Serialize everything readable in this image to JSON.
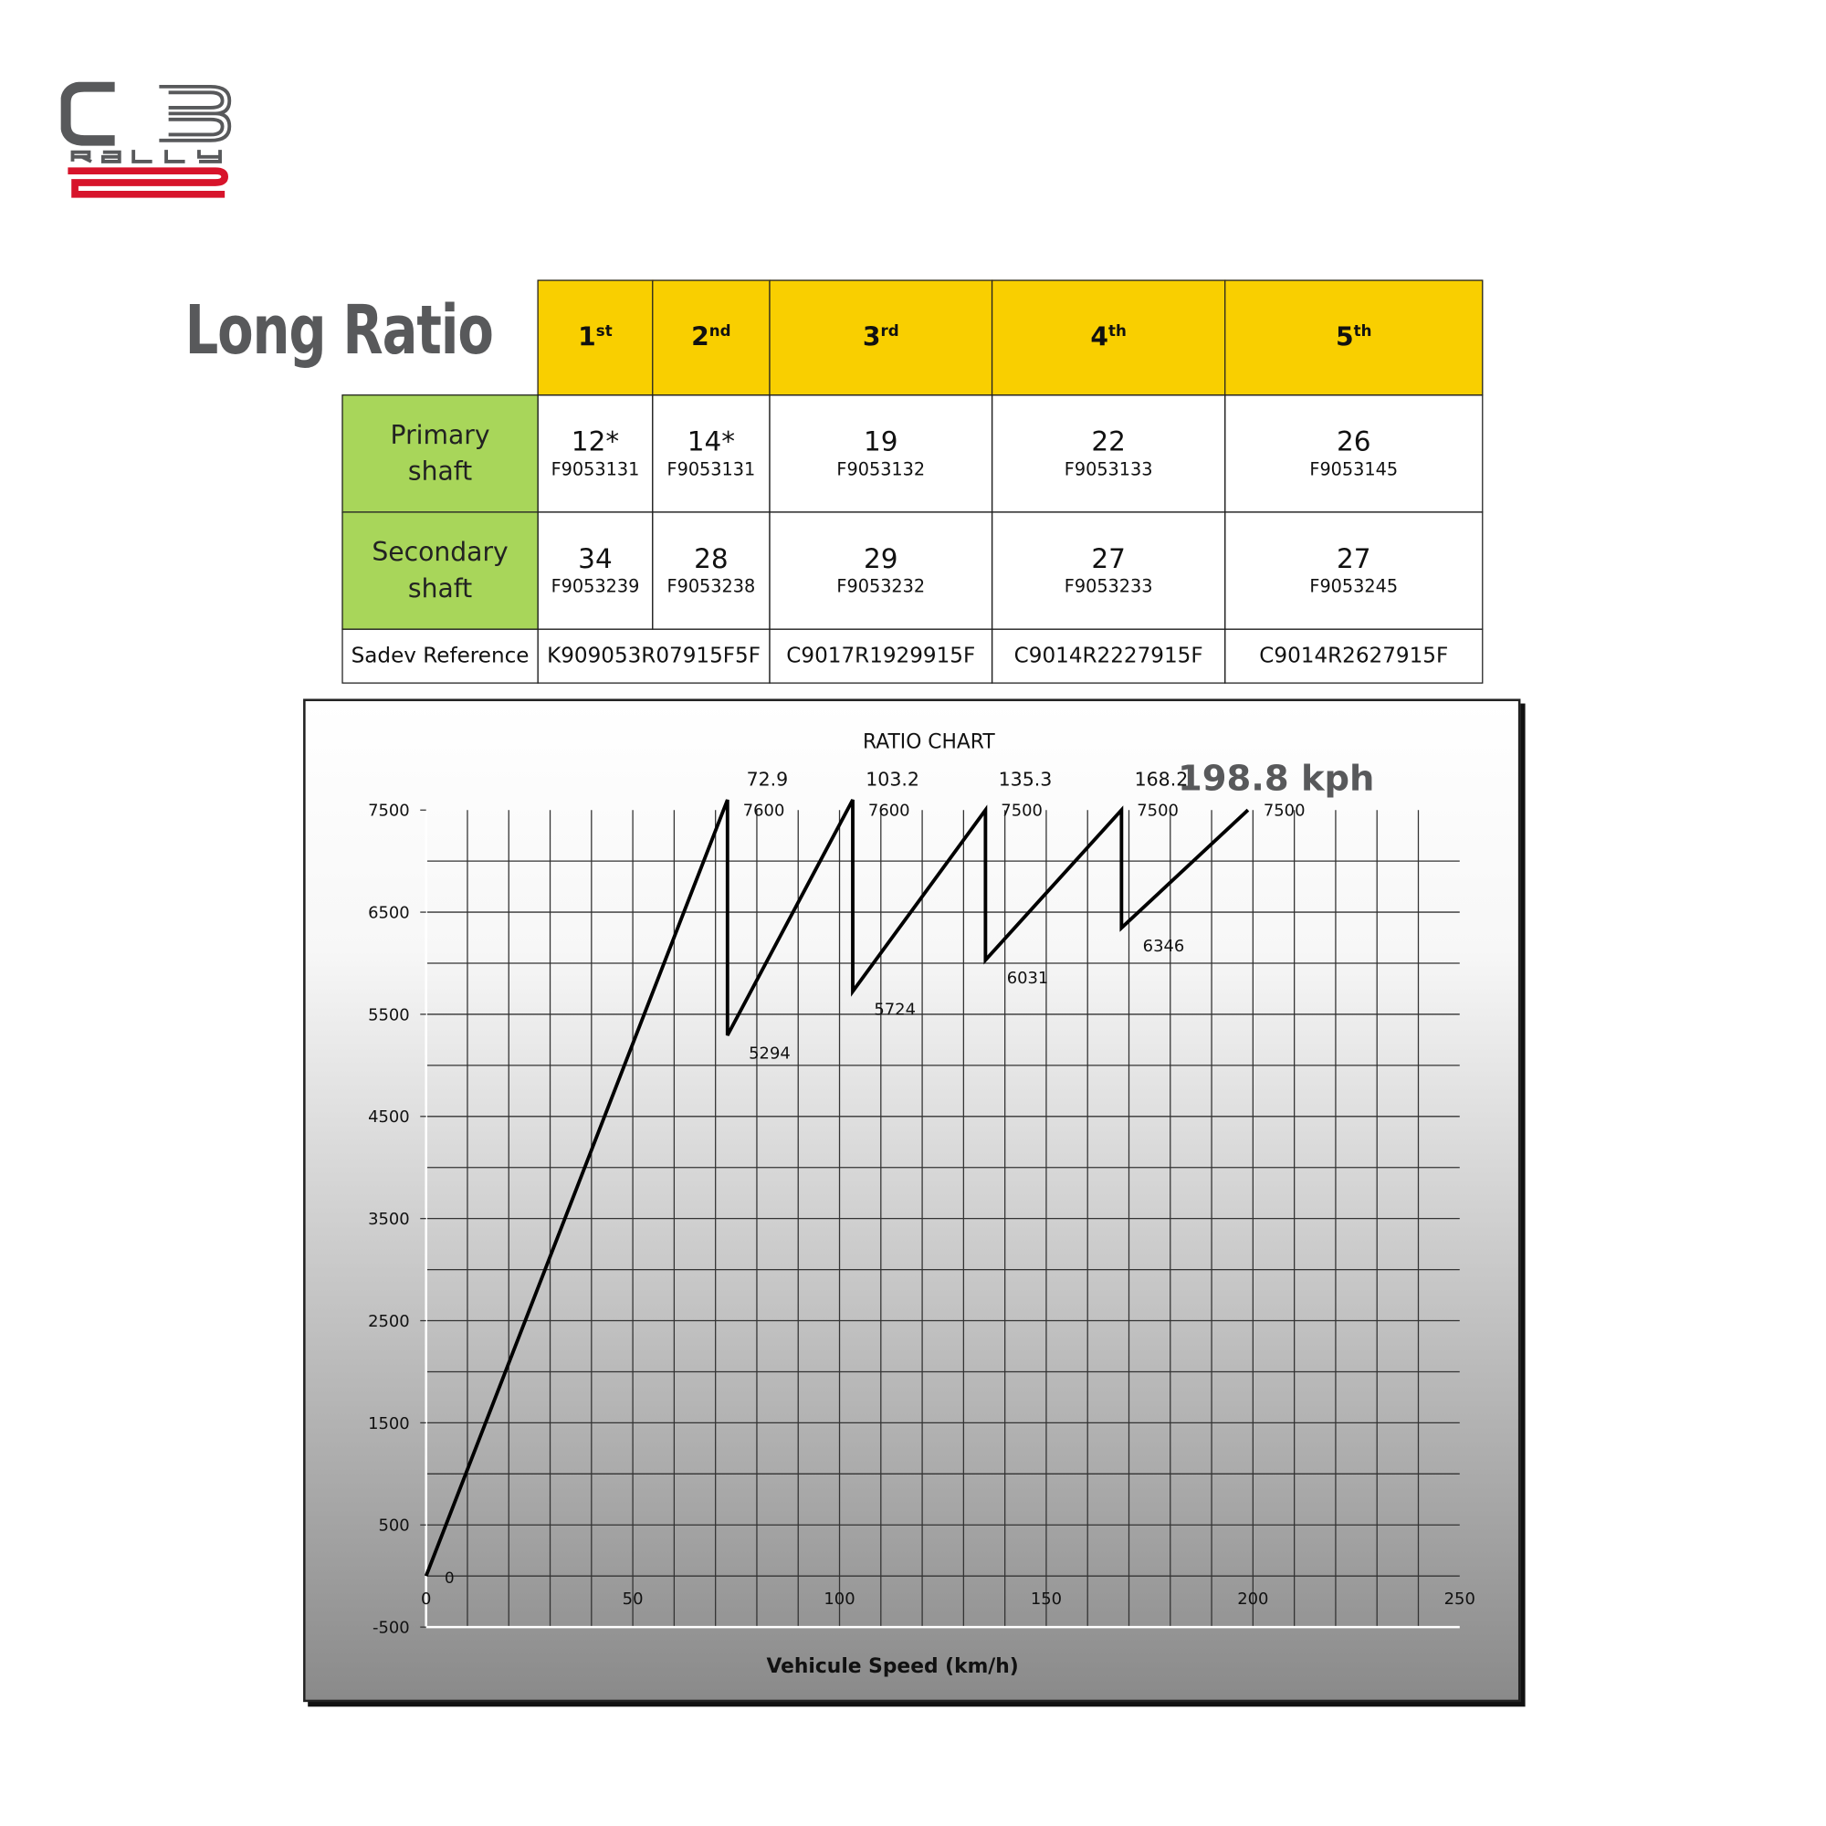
{
  "logo": {
    "text": "C3 RALLY2",
    "colors": {
      "grey": "#58595b",
      "red": "#d7142b"
    }
  },
  "title": "Long Ratio",
  "table": {
    "gears": [
      {
        "num": "1",
        "suffix": "st"
      },
      {
        "num": "2",
        "suffix": "nd"
      },
      {
        "num": "3",
        "suffix": "rd"
      },
      {
        "num": "4",
        "suffix": "th"
      },
      {
        "num": "5",
        "suffix": "th"
      }
    ],
    "rows": [
      {
        "label_line1": "Primary",
        "label_line2": "shaft",
        "cells": [
          {
            "teeth": "12*",
            "part": "F9053131"
          },
          {
            "teeth": "14*",
            "part": "F9053131"
          },
          {
            "teeth": "19",
            "part": "F9053132"
          },
          {
            "teeth": "22",
            "part": "F9053133"
          },
          {
            "teeth": "26",
            "part": "F9053145"
          }
        ]
      },
      {
        "label_line1": "Secondary",
        "label_line2": "shaft",
        "cells": [
          {
            "teeth": "34",
            "part": "F9053239"
          },
          {
            "teeth": "28",
            "part": "F9053238"
          },
          {
            "teeth": "29",
            "part": "F9053232"
          },
          {
            "teeth": "27",
            "part": "F9053233"
          },
          {
            "teeth": "27",
            "part": "F9053245"
          }
        ]
      }
    ],
    "sadev": {
      "label": "Sadev Reference",
      "refs": [
        "K909053R07915F5F",
        "C9017R1929915F",
        "C9014R2227915F",
        "C9014R2627915F"
      ]
    },
    "colors": {
      "header": "#f9cf00",
      "label": "#a8d65a"
    }
  },
  "chart_data": {
    "type": "line",
    "title": "RATIO CHART",
    "xlabel": "Vehicule Speed (km/h)",
    "ylabel": "",
    "xlim": [
      0,
      250
    ],
    "ylim": [
      -500,
      7500
    ],
    "x_ticks": [
      "0",
      "50",
      "100",
      "150",
      "200",
      "250"
    ],
    "y_ticks": [
      "7500",
      "6500",
      "5500",
      "4500",
      "3500",
      "2500",
      "1500",
      "500",
      "-500"
    ],
    "y_tick_values": [
      7500,
      6500,
      5500,
      4500,
      3500,
      2500,
      1500,
      500,
      -500
    ],
    "x_tick_values": [
      0,
      50,
      100,
      150,
      200,
      250
    ],
    "grid": true,
    "series": [
      {
        "points": [
          [
            0,
            0
          ],
          [
            72.9,
            7600
          ],
          [
            72.9,
            5294
          ],
          [
            103.2,
            7600
          ],
          [
            103.2,
            5724
          ],
          [
            135.3,
            7500
          ],
          [
            135.3,
            6031
          ],
          [
            168.2,
            7500
          ],
          [
            168.2,
            6346
          ],
          [
            198.8,
            7500
          ]
        ],
        "color": "#000000"
      }
    ],
    "annotations": {
      "origin": "0",
      "shift_speeds": [
        {
          "x": 72.9,
          "text": "72.9"
        },
        {
          "x": 103.2,
          "text": "103.2"
        },
        {
          "x": 135.3,
          "text": "135.3"
        },
        {
          "x": 168.2,
          "text": "168.2"
        }
      ],
      "top_speed": {
        "x": 198.8,
        "text": "198.8 kph"
      },
      "peak_rpm": [
        {
          "x": 72.9,
          "text": "7600"
        },
        {
          "x": 103.2,
          "text": "7600"
        },
        {
          "x": 135.3,
          "text": "7500"
        },
        {
          "x": 168.2,
          "text": "7500"
        },
        {
          "x": 198.8,
          "text": "7500"
        }
      ],
      "drop_rpm": [
        {
          "x": 72.9,
          "y": 5294,
          "text": "5294"
        },
        {
          "x": 103.2,
          "y": 5724,
          "text": "5724"
        },
        {
          "x": 135.3,
          "y": 6031,
          "text": "6031"
        },
        {
          "x": 168.2,
          "y": 6346,
          "text": "6346"
        }
      ]
    }
  }
}
